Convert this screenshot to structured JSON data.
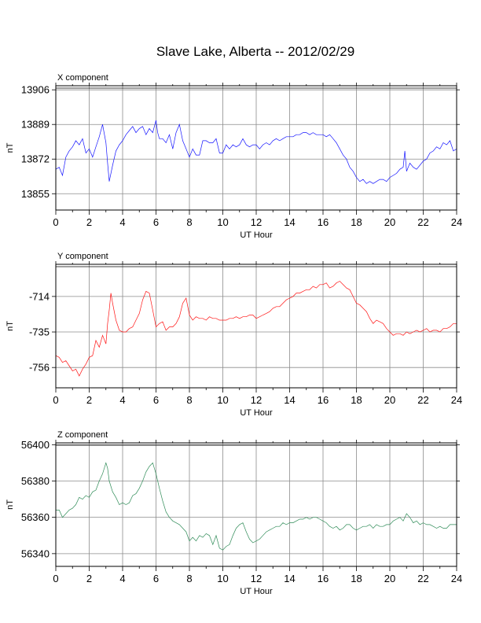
{
  "page": {
    "title": "Slave Lake, Alberta -- 2012/02/29"
  },
  "chart_data": [
    {
      "type": "line",
      "panel_title": "X component",
      "xlabel": "UT Hour",
      "ylabel": "nT",
      "xlim": [
        0,
        24
      ],
      "ylim": [
        13847,
        13908
      ],
      "xticks": [
        0,
        2,
        4,
        6,
        8,
        10,
        12,
        14,
        16,
        18,
        20,
        22,
        24
      ],
      "yticks": [
        13855,
        13872,
        13889,
        13906
      ],
      "grid": true,
      "color": "#1414ff",
      "series": [
        {
          "x": [
            0,
            0.2,
            0.4,
            0.6,
            0.8,
            1.0,
            1.2,
            1.4,
            1.6,
            1.8,
            2.0,
            2.2,
            2.4,
            2.6,
            2.8,
            3.0,
            3.1,
            3.2,
            3.4,
            3.6,
            3.8,
            4.0,
            4.2,
            4.4,
            4.6,
            4.8,
            5.0,
            5.2,
            5.4,
            5.6,
            5.8,
            6.0,
            6.1,
            6.2,
            6.4,
            6.6,
            6.8,
            7.0,
            7.2,
            7.4,
            7.6,
            7.8,
            8.0,
            8.2,
            8.4,
            8.6,
            8.8,
            9.0,
            9.2,
            9.4,
            9.6,
            9.8,
            10.0,
            10.2,
            10.4,
            10.6,
            10.8,
            11.0,
            11.2,
            11.4,
            11.6,
            11.8,
            12.0,
            12.2,
            12.4,
            12.6,
            12.8,
            13.0,
            13.2,
            13.4,
            13.6,
            13.8,
            14.0,
            14.2,
            14.4,
            14.6,
            14.8,
            15.0,
            15.2,
            15.4,
            15.6,
            15.8,
            16.0,
            16.2,
            16.4,
            16.6,
            16.8,
            17.0,
            17.2,
            17.4,
            17.6,
            17.8,
            18.0,
            18.2,
            18.4,
            18.6,
            18.8,
            19.0,
            19.2,
            19.4,
            19.6,
            19.8,
            20.0,
            20.2,
            20.4,
            20.6,
            20.8,
            20.9,
            21.0,
            21.2,
            21.4,
            21.6,
            21.8,
            22.0,
            22.2,
            22.4,
            22.6,
            22.8,
            23.0,
            23.2,
            23.4,
            23.6,
            23.8,
            24.0
          ],
          "values": [
            13867,
            13868,
            13864,
            13873,
            13876,
            13878,
            13881,
            13879,
            13882,
            13875,
            13877,
            13873,
            13878,
            13883,
            13889,
            13880,
            13870,
            13861,
            13869,
            13876,
            13879,
            13881,
            13884,
            13886,
            13888,
            13885,
            13887,
            13888,
            13884,
            13887,
            13885,
            13891,
            13885,
            13882,
            13882,
            13880,
            13884,
            13877,
            13885,
            13889,
            13881,
            13877,
            13873,
            13877,
            13874,
            13874,
            13881,
            13881,
            13880,
            13880,
            13882,
            13875,
            13875,
            13879,
            13877,
            13879,
            13878,
            13879,
            13882,
            13879,
            13878,
            13879,
            13879,
            13877,
            13879,
            13880,
            13879,
            13881,
            13882,
            13881,
            13882,
            13883,
            13883,
            13883,
            13884,
            13884,
            13885,
            13885,
            13884,
            13885,
            13884,
            13884,
            13884,
            13883,
            13884,
            13882,
            13880,
            13877,
            13874,
            13872,
            13868,
            13866,
            13863,
            13861,
            13862,
            13860,
            13861,
            13860,
            13861,
            13862,
            13862,
            13861,
            13863,
            13864,
            13865,
            13867,
            13868,
            13876,
            13866,
            13870,
            13868,
            13867,
            13869,
            13871,
            13872,
            13875,
            13876,
            13878,
            13877,
            13880,
            13879,
            13881,
            13876,
            13877
          ]
        }
      ]
    },
    {
      "type": "line",
      "panel_title": "Y component",
      "xlabel": "UT Hour",
      "ylabel": "nT",
      "xlim": [
        0,
        24
      ],
      "ylim": [
        -768,
        -695
      ],
      "xticks": [
        0,
        2,
        4,
        6,
        8,
        10,
        12,
        14,
        16,
        18,
        20,
        22,
        24
      ],
      "yticks": [
        -756,
        -735,
        -714
      ],
      "grid": true,
      "color": "#ff1414",
      "series": [
        {
          "x": [
            0,
            0.2,
            0.4,
            0.6,
            0.8,
            1.0,
            1.2,
            1.4,
            1.6,
            1.8,
            2.0,
            2.2,
            2.4,
            2.6,
            2.8,
            3.0,
            3.1,
            3.2,
            3.3,
            3.4,
            3.6,
            3.8,
            4.0,
            4.2,
            4.4,
            4.6,
            4.8,
            5.0,
            5.2,
            5.4,
            5.6,
            5.8,
            6.0,
            6.2,
            6.4,
            6.6,
            6.8,
            7.0,
            7.2,
            7.4,
            7.6,
            7.8,
            8.0,
            8.2,
            8.4,
            8.6,
            8.8,
            9.0,
            9.2,
            9.4,
            9.6,
            9.8,
            10.0,
            10.2,
            10.4,
            10.6,
            10.8,
            11.0,
            11.2,
            11.4,
            11.6,
            11.8,
            12.0,
            12.2,
            12.4,
            12.6,
            12.8,
            13.0,
            13.2,
            13.4,
            13.6,
            13.8,
            14.0,
            14.2,
            14.4,
            14.6,
            14.8,
            15.0,
            15.2,
            15.4,
            15.6,
            15.8,
            16.0,
            16.2,
            16.4,
            16.6,
            16.8,
            17.0,
            17.2,
            17.4,
            17.6,
            17.8,
            18.0,
            18.2,
            18.4,
            18.6,
            18.8,
            19.0,
            19.2,
            19.4,
            19.6,
            19.8,
            20.0,
            20.2,
            20.4,
            20.6,
            20.8,
            21.0,
            21.2,
            21.4,
            21.6,
            21.8,
            22.0,
            22.2,
            22.4,
            22.6,
            22.8,
            23.0,
            23.2,
            23.4,
            23.6,
            23.8,
            24.0
          ],
          "values": [
            -749,
            -750,
            -753,
            -752,
            -755,
            -758,
            -757,
            -761,
            -757,
            -754,
            -750,
            -749,
            -740,
            -744,
            -737,
            -742,
            -730,
            -722,
            -712,
            -718,
            -728,
            -734,
            -735,
            -735,
            -733,
            -732,
            -728,
            -724,
            -716,
            -711,
            -712,
            -722,
            -732,
            -730,
            -729,
            -734,
            -732,
            -732,
            -730,
            -726,
            -718,
            -715,
            -725,
            -728,
            -726,
            -727,
            -727,
            -728,
            -726,
            -727,
            -727,
            -728,
            -728,
            -728,
            -727,
            -727,
            -726,
            -727,
            -726,
            -726,
            -725,
            -725,
            -727,
            -726,
            -725,
            -724,
            -723,
            -721,
            -720,
            -720,
            -718,
            -716,
            -715,
            -714,
            -712,
            -712,
            -711,
            -710,
            -710,
            -708,
            -709,
            -707,
            -707,
            -706,
            -709,
            -708,
            -706,
            -705,
            -707,
            -709,
            -710,
            -714,
            -718,
            -719,
            -721,
            -723,
            -727,
            -730,
            -728,
            -729,
            -730,
            -733,
            -735,
            -737,
            -736,
            -736,
            -737,
            -735,
            -736,
            -735,
            -734,
            -735,
            -734,
            -733,
            -735,
            -734,
            -734,
            -735,
            -733,
            -733,
            -732,
            -730,
            -730
          ]
        }
      ]
    },
    {
      "type": "line",
      "panel_title": "Z component",
      "xlabel": "UT Hour",
      "ylabel": "nT",
      "xlim": [
        0,
        24
      ],
      "ylim": [
        56333,
        56401
      ],
      "xticks": [
        0,
        2,
        4,
        6,
        8,
        10,
        12,
        14,
        16,
        18,
        20,
        22,
        24
      ],
      "yticks": [
        56340,
        56360,
        56380,
        56400
      ],
      "grid": true,
      "color": "#2e8b57",
      "series": [
        {
          "x": [
            0,
            0.2,
            0.4,
            0.6,
            0.8,
            1.0,
            1.2,
            1.4,
            1.6,
            1.8,
            2.0,
            2.2,
            2.4,
            2.6,
            2.8,
            3.0,
            3.1,
            3.2,
            3.4,
            3.6,
            3.8,
            4.0,
            4.2,
            4.4,
            4.6,
            4.8,
            5.0,
            5.2,
            5.4,
            5.6,
            5.8,
            6.0,
            6.2,
            6.4,
            6.6,
            6.8,
            7.0,
            7.2,
            7.4,
            7.6,
            7.8,
            8.0,
            8.2,
            8.4,
            8.6,
            8.8,
            9.0,
            9.2,
            9.4,
            9.6,
            9.8,
            10.0,
            10.2,
            10.4,
            10.6,
            10.8,
            11.0,
            11.2,
            11.4,
            11.6,
            11.8,
            12.0,
            12.2,
            12.4,
            12.6,
            12.8,
            13.0,
            13.2,
            13.4,
            13.6,
            13.8,
            14.0,
            14.2,
            14.4,
            14.6,
            14.8,
            15.0,
            15.2,
            15.4,
            15.6,
            15.8,
            16.0,
            16.2,
            16.4,
            16.6,
            16.8,
            17.0,
            17.2,
            17.4,
            17.6,
            17.8,
            18.0,
            18.2,
            18.4,
            18.6,
            18.8,
            19.0,
            19.2,
            19.4,
            19.6,
            19.8,
            20.0,
            20.2,
            20.4,
            20.6,
            20.8,
            21.0,
            21.2,
            21.4,
            21.6,
            21.8,
            22.0,
            22.2,
            22.4,
            22.6,
            22.8,
            23.0,
            23.2,
            23.4,
            23.6,
            23.8,
            24.0
          ],
          "values": [
            56364,
            56364,
            56360,
            56362,
            56364,
            56365,
            56367,
            56371,
            56370,
            56372,
            56371,
            56374,
            56375,
            56380,
            56384,
            56390,
            56387,
            56380,
            56374,
            56371,
            56367,
            56368,
            56367,
            56368,
            56372,
            56373,
            56376,
            56380,
            56385,
            56388,
            56390,
            56384,
            56376,
            56369,
            56363,
            56360,
            56358,
            56357,
            56356,
            56354,
            56352,
            56347,
            56349,
            56347,
            56350,
            56349,
            56351,
            56350,
            56345,
            56350,
            56343,
            56342,
            56344,
            56345,
            56350,
            56354,
            56356,
            56357,
            56352,
            56348,
            56346,
            56347,
            56348,
            56350,
            56352,
            56353,
            56354,
            56355,
            56355,
            56357,
            56356,
            56357,
            56357,
            56358,
            56359,
            56359,
            56360,
            56359,
            56360,
            56360,
            56359,
            56358,
            56357,
            56355,
            56354,
            56355,
            56353,
            56354,
            56356,
            56356,
            56354,
            56353,
            56354,
            56355,
            56355,
            56356,
            56354,
            56356,
            56355,
            56355,
            56356,
            56356,
            56358,
            56359,
            56360,
            56358,
            56362,
            56360,
            56357,
            56358,
            56356,
            56357,
            56356,
            56356,
            56355,
            56354,
            56355,
            56354,
            56354,
            56356,
            56356,
            56356
          ]
        }
      ]
    }
  ]
}
